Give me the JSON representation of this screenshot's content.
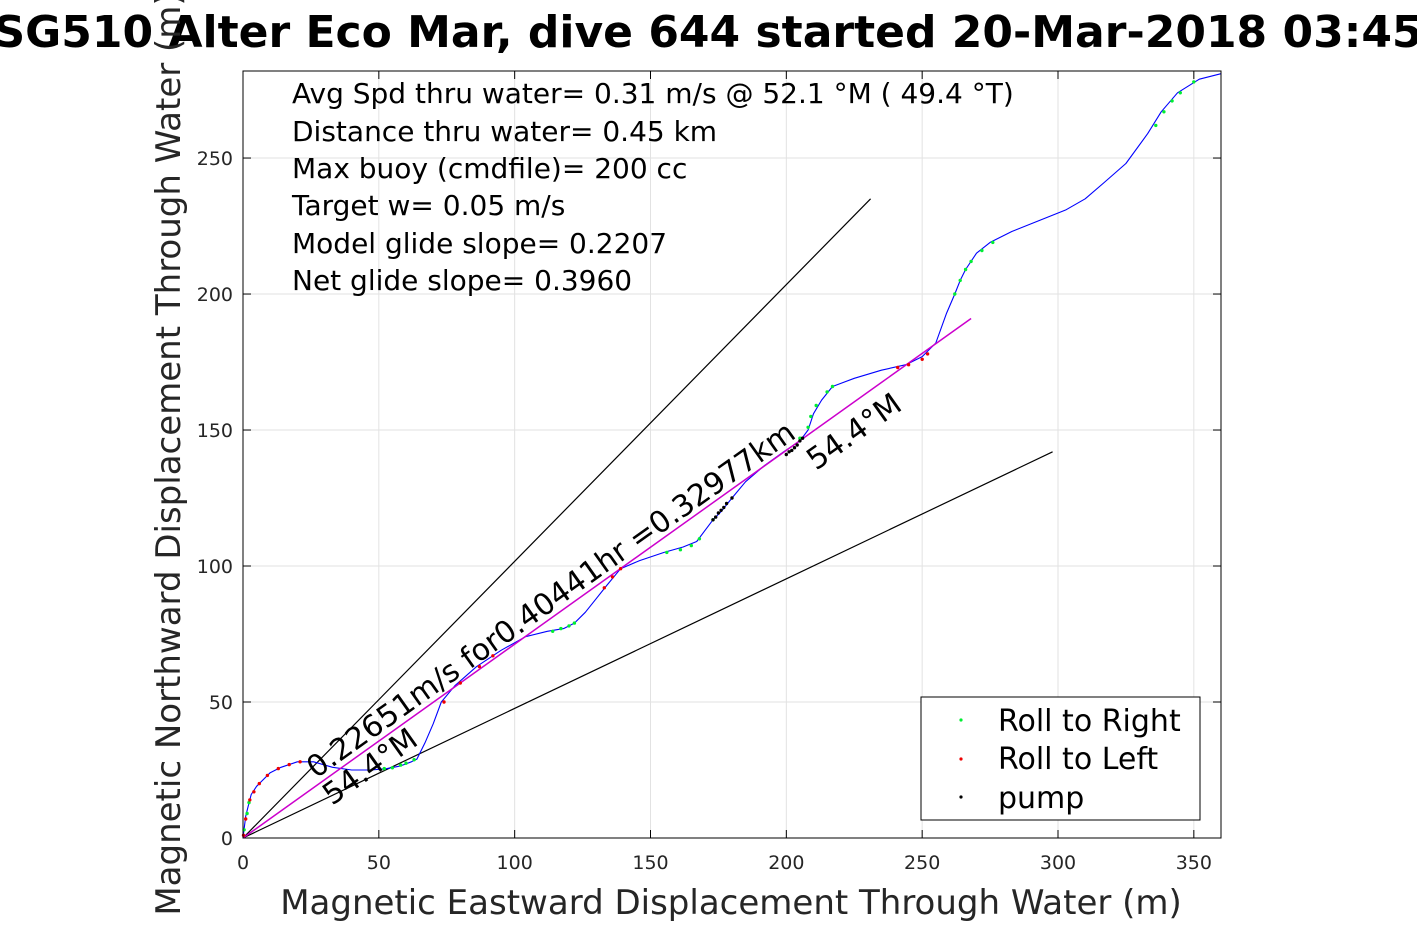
{
  "chart_data": {
    "type": "line",
    "title": "SG510 Alter Eco Mar, dive 644 started 20-Mar-2018 03:45",
    "xlabel": "Magnetic Eastward Displacement Through Water (m)",
    "ylabel": "Magnetic Northward Displacement Through Water (m)",
    "xlim": [
      0,
      360
    ],
    "ylim": [
      0,
      282
    ],
    "xticks": [
      0,
      50,
      100,
      150,
      200,
      250,
      300,
      350
    ],
    "yticks": [
      0,
      50,
      100,
      150,
      200,
      250
    ],
    "grid": true,
    "legend_position": "bottom-right",
    "colors": {
      "track": "#0000ff",
      "net_line": "#cc00cc",
      "roll_right": "#00ee33",
      "roll_left": "#ee0000",
      "pump": "#000000",
      "guide": "#000000",
      "grid": "#e2e2e2"
    },
    "info_lines": [
      "Avg Spd thru water=  0.31 m/s @  52.1 °M ( 49.4 °T)",
      "Distance thru water=  0.45 km",
      "Max buoy (cmdfile)= 200 cc",
      "Target w= 0.05 m/s",
      "Model glide slope= 0.2207",
      "Net glide slope= 0.3960"
    ],
    "annotations": {
      "net_segment": "0.22651m/s for0.40441hr =0.32977km",
      "heading_upper": "54.4°M",
      "heading_lower": "54.4°M"
    },
    "legend": [
      {
        "label": "Roll to Right",
        "color": "#00ee33"
      },
      {
        "label": "Roll to Left",
        "color": "#ee0000"
      },
      {
        "label": "pump",
        "color": "#000000"
      }
    ],
    "series": [
      {
        "name": "track",
        "points": [
          [
            0,
            0
          ],
          [
            1,
            8
          ],
          [
            2,
            12
          ],
          [
            3,
            16
          ],
          [
            5,
            19
          ],
          [
            7,
            21
          ],
          [
            10,
            24
          ],
          [
            14,
            26
          ],
          [
            20,
            28
          ],
          [
            26,
            28
          ],
          [
            33,
            26
          ],
          [
            40,
            25
          ],
          [
            47,
            25
          ],
          [
            53,
            25.5
          ],
          [
            58,
            26.5
          ],
          [
            62,
            28
          ],
          [
            64,
            29
          ],
          [
            67,
            35
          ],
          [
            70,
            42
          ],
          [
            73,
            50
          ],
          [
            78,
            56
          ],
          [
            86,
            63
          ],
          [
            95,
            69
          ],
          [
            104,
            74
          ],
          [
            112,
            76
          ],
          [
            118,
            77
          ],
          [
            122,
            79
          ],
          [
            126,
            83
          ],
          [
            130,
            88
          ],
          [
            134,
            93
          ],
          [
            139,
            99
          ],
          [
            146,
            102
          ],
          [
            155,
            105
          ],
          [
            162,
            107
          ],
          [
            167,
            109
          ],
          [
            170,
            113
          ],
          [
            173,
            117
          ],
          [
            176,
            120
          ],
          [
            180,
            125
          ],
          [
            185,
            131
          ],
          [
            192,
            137
          ],
          [
            199,
            142
          ],
          [
            205,
            146
          ],
          [
            208,
            150
          ],
          [
            210,
            156
          ],
          [
            213,
            161
          ],
          [
            217,
            166
          ],
          [
            225,
            169
          ],
          [
            235,
            172
          ],
          [
            244,
            174
          ],
          [
            250,
            177
          ],
          [
            255,
            182
          ],
          [
            259,
            193
          ],
          [
            262,
            200
          ],
          [
            264,
            205
          ],
          [
            266,
            209
          ],
          [
            270,
            215
          ],
          [
            275,
            219
          ],
          [
            283,
            223
          ],
          [
            293,
            227
          ],
          [
            303,
            231
          ],
          [
            310,
            235
          ],
          [
            317,
            241
          ],
          [
            325,
            248
          ],
          [
            333,
            259
          ],
          [
            338,
            267
          ],
          [
            344,
            274
          ],
          [
            352,
            279
          ],
          [
            360,
            281
          ]
        ]
      },
      {
        "name": "net_path",
        "points": [
          [
            0,
            0
          ],
          [
            268,
            191
          ]
        ]
      },
      {
        "name": "upper_guide",
        "points": [
          [
            0,
            0
          ],
          [
            231,
            235
          ]
        ]
      },
      {
        "name": "lower_guide",
        "points": [
          [
            0,
            0
          ],
          [
            298,
            142
          ]
        ]
      }
    ],
    "markers": {
      "roll_right": [
        [
          0.4,
          3
        ],
        [
          1.5,
          9
        ],
        [
          2.2,
          13
        ],
        [
          52,
          25.5
        ],
        [
          55,
          25.8
        ],
        [
          58,
          26.8
        ],
        [
          60,
          27.5
        ],
        [
          63,
          28.8
        ],
        [
          114,
          76
        ],
        [
          117,
          77
        ],
        [
          120,
          78
        ],
        [
          122,
          79
        ],
        [
          156,
          105
        ],
        [
          161,
          106
        ],
        [
          165,
          107.5
        ],
        [
          168,
          110
        ],
        [
          173,
          117
        ],
        [
          205,
          147
        ],
        [
          208,
          151
        ],
        [
          209,
          155
        ],
        [
          211,
          159
        ],
        [
          215,
          164
        ],
        [
          217,
          166
        ],
        [
          262,
          200
        ],
        [
          264,
          205
        ],
        [
          266,
          209
        ],
        [
          268,
          212
        ],
        [
          272,
          216
        ],
        [
          276,
          219
        ],
        [
          336,
          262
        ],
        [
          339,
          267
        ],
        [
          342,
          271
        ],
        [
          345,
          274
        ],
        [
          350,
          278
        ]
      ],
      "roll_left": [
        [
          0.2,
          1
        ],
        [
          1,
          7
        ],
        [
          2.5,
          14
        ],
        [
          4,
          17
        ],
        [
          6,
          20
        ],
        [
          9,
          23
        ],
        [
          13,
          25.5
        ],
        [
          17,
          27
        ],
        [
          21,
          28
        ],
        [
          74,
          50
        ],
        [
          80,
          57
        ],
        [
          87,
          63
        ],
        [
          92,
          67
        ],
        [
          133,
          92
        ],
        [
          136,
          96
        ],
        [
          139,
          99
        ],
        [
          241,
          173
        ],
        [
          245,
          174
        ],
        [
          250,
          176
        ],
        [
          252,
          178
        ]
      ],
      "pump": [
        [
          173,
          117
        ],
        [
          174,
          118
        ],
        [
          175,
          119.5
        ],
        [
          176,
          120.5
        ],
        [
          177,
          121.5
        ],
        [
          178,
          123
        ],
        [
          180,
          125
        ],
        [
          200,
          141
        ],
        [
          201,
          142
        ],
        [
          202,
          142.5
        ],
        [
          203,
          143.5
        ],
        [
          204,
          144.5
        ],
        [
          205,
          146
        ],
        [
          206,
          147
        ]
      ]
    }
  }
}
